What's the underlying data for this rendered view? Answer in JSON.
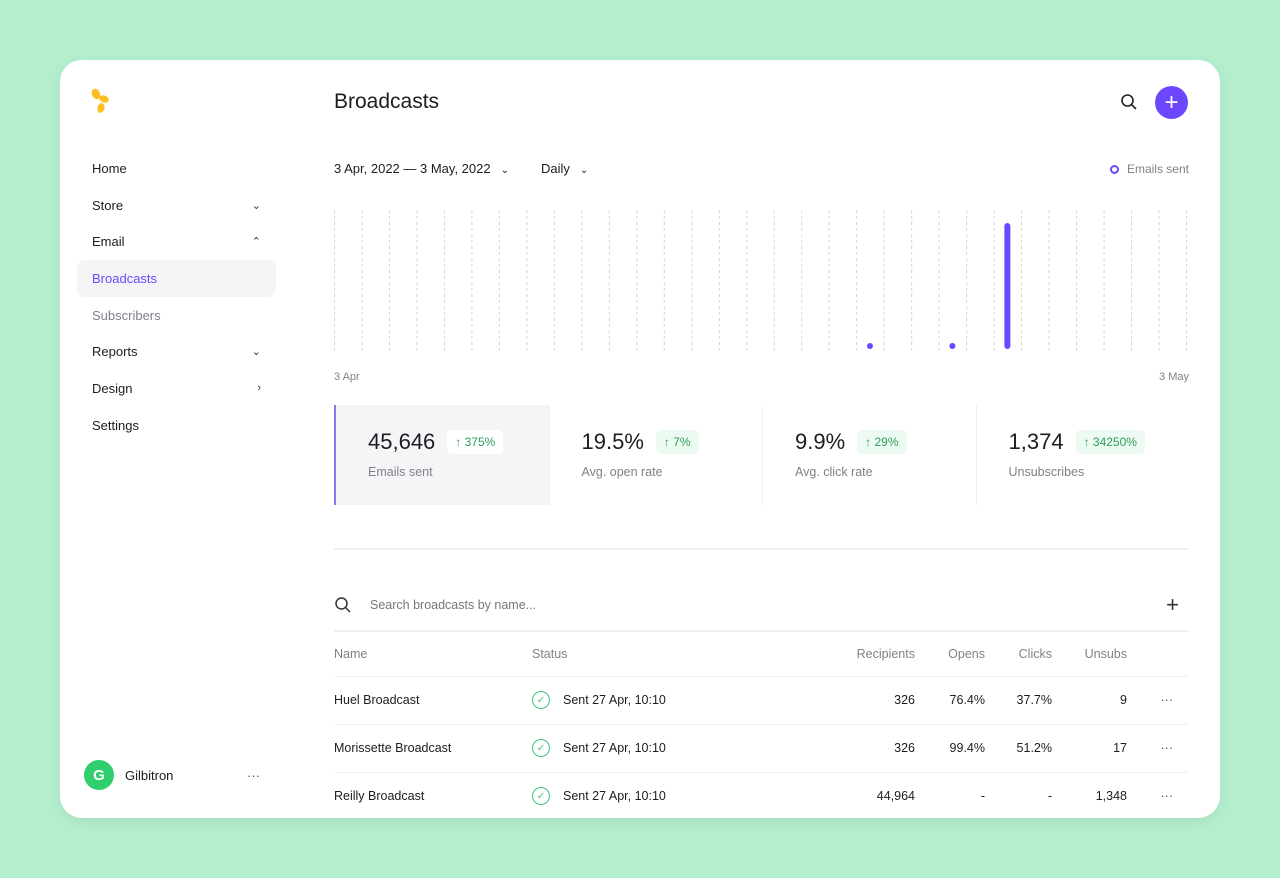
{
  "sidebar": {
    "items": [
      {
        "label": "Home",
        "chevron": ""
      },
      {
        "label": "Store",
        "chevron": "⌄"
      },
      {
        "label": "Email",
        "chevron": "⌃"
      },
      {
        "label": "Broadcasts",
        "chevron": ""
      },
      {
        "label": "Subscribers",
        "chevron": ""
      },
      {
        "label": "Reports",
        "chevron": "⌄"
      },
      {
        "label": "Design",
        "chevron": "›"
      },
      {
        "label": "Settings",
        "chevron": ""
      }
    ],
    "user": {
      "initial": "G",
      "name": "Gilbitron",
      "more": "···"
    }
  },
  "header": {
    "title": "Broadcasts",
    "add": "+"
  },
  "filters": {
    "date_range": "3 Apr, 2022 — 3 May, 2022",
    "interval": "Daily"
  },
  "colors": {
    "accent": "#6c47ff",
    "logo": "#fbbf24",
    "positive": "#2f9d5d"
  },
  "chart_data": {
    "type": "bar",
    "legend": "Emails sent",
    "x_start": "3 Apr",
    "x_end": "3 May",
    "grid": true,
    "series": [
      {
        "name": "Emails sent",
        "points": [
          {
            "date": "22 Apr",
            "value": 15
          },
          {
            "date": "25 Apr",
            "value": 15
          },
          {
            "date": "27 Apr",
            "value": 45616
          }
        ]
      }
    ]
  },
  "stats": [
    {
      "value": "45,646",
      "change": "↑ 375%",
      "label": "Emails sent"
    },
    {
      "value": "19.5%",
      "change": "↑ 7%",
      "label": "Avg. open rate"
    },
    {
      "value": "9.9%",
      "change": "↑ 29%",
      "label": "Avg. click rate"
    },
    {
      "value": "1,374",
      "change": "↑ 34250%",
      "label": "Unsubscribes"
    }
  ],
  "search": {
    "placeholder": "Search broadcasts by name...",
    "add": "+"
  },
  "table": {
    "headers": {
      "name": "Name",
      "status": "Status",
      "recipients": "Recipients",
      "opens": "Opens",
      "clicks": "Clicks",
      "unsubs": "Unsubs"
    },
    "rows": [
      {
        "name": "Huel Broadcast",
        "status": "Sent 27 Apr, 10:10",
        "recipients": "326",
        "opens": "76.4%",
        "clicks": "37.7%",
        "unsubs": "9",
        "more": "···"
      },
      {
        "name": "Morissette Broadcast",
        "status": "Sent 27 Apr, 10:10",
        "recipients": "326",
        "opens": "99.4%",
        "clicks": "51.2%",
        "unsubs": "17",
        "more": "···"
      },
      {
        "name": "Reilly Broadcast",
        "status": "Sent 27 Apr, 10:10",
        "recipients": "44,964",
        "opens": "-",
        "clicks": "-",
        "unsubs": "1,348",
        "more": "···"
      }
    ]
  }
}
